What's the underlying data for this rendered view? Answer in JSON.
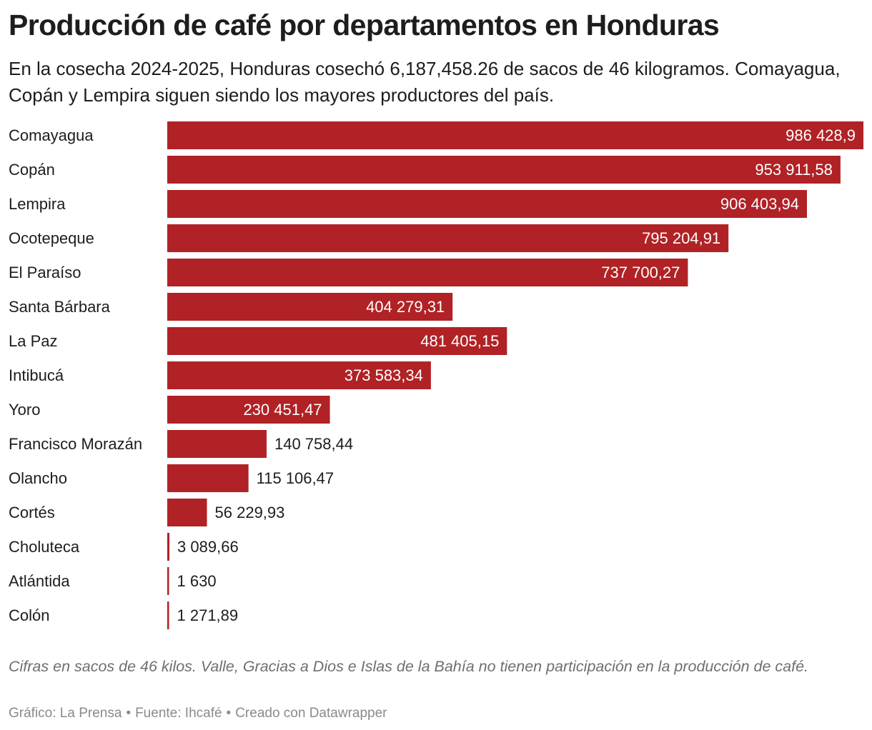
{
  "title": "Producción de café por departamentos en Honduras",
  "subtitle": "En la cosecha 2024-2025, Honduras cosechó 6,187,458.26 de sacos de 46 kilogramos. Comayagua, Copán y Lempira siguen siendo los mayores productores del país.",
  "notes": "Cifras en sacos de 46 kilos. Valle, Gracias a Dios e Islas de la Bahía no tienen participación en la producción de café.",
  "footer": {
    "chart_by": "Gráfico: La Prensa",
    "source": "Fuente: Ihcafé",
    "tool": "Creado con Datawrapper",
    "separator": "•"
  },
  "colors": {
    "bar": "#b02225",
    "label_inside": "#ffffff",
    "label_outside": "#1d1d1d"
  },
  "chart_data": {
    "type": "bar",
    "orientation": "horizontal",
    "categories": [
      "Comayagua",
      "Copán",
      "Lempira",
      "Ocotepeque",
      "El Paraíso",
      "Santa Bárbara",
      "La Paz",
      "Intibucá",
      "Yoro",
      "Francisco Morazán",
      "Olancho",
      "Cortés",
      "Choluteca",
      "Atlántida",
      "Colón"
    ],
    "values": [
      986428.9,
      953911.58,
      906403.94,
      795204.91,
      737700.27,
      404279.31,
      481405.15,
      373583.34,
      230451.47,
      140758.44,
      115106.47,
      56229.93,
      3089.66,
      1630,
      1271.89
    ],
    "value_labels": [
      "986 428,9",
      "953 911,58",
      "906 403,94",
      "795 204,91",
      "737 700,27",
      "404 279,31",
      "481 405,15",
      "373 583,34",
      "230 451,47",
      "140 758,44",
      "115 106,47",
      "56 229,93",
      "3 089,66",
      "1 630",
      "1 271,89"
    ],
    "xlim": [
      0,
      986428.9
    ],
    "grid": false,
    "legend": "none"
  }
}
